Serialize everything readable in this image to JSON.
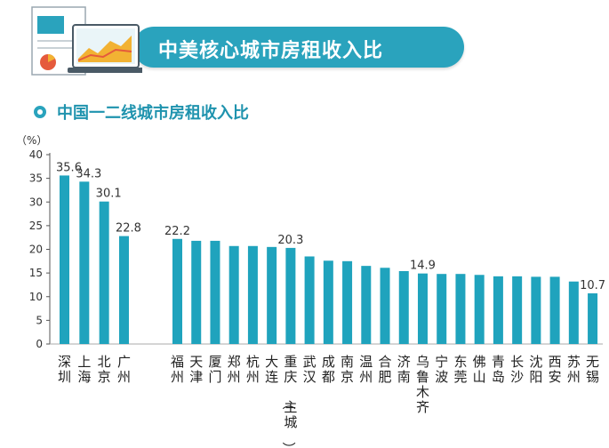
{
  "header": {
    "title": "中美核心城市房租收入比"
  },
  "subtitle": "中国一二线城市房租收入比",
  "chart_data": {
    "type": "bar",
    "ylabel": "（%）",
    "ylim": [
      0,
      40
    ],
    "yticks": [
      0,
      5,
      10,
      15,
      20,
      25,
      30,
      35,
      40
    ],
    "categories": [
      "深圳",
      "上海",
      "北京",
      "广州",
      "福州",
      "天津",
      "厦门",
      "郑州",
      "杭州",
      "大连",
      "重庆（主城）",
      "武汉",
      "成都",
      "南京",
      "温州",
      "合肥",
      "济南",
      "乌鲁木齐",
      "宁波",
      "东莞",
      "佛山",
      "青岛",
      "长沙",
      "沈阳",
      "西安",
      "苏州",
      "无锡"
    ],
    "values": [
      35.6,
      34.3,
      30.1,
      22.8,
      22.2,
      21.8,
      21.8,
      20.7,
      20.7,
      20.5,
      20.3,
      18.5,
      17.6,
      17.5,
      16.5,
      16.1,
      15.4,
      14.9,
      14.8,
      14.8,
      14.6,
      14.3,
      14.3,
      14.2,
      14.2,
      13.2,
      10.7
    ],
    "data_labels": {
      "0": "35.6",
      "1": "34.3",
      "2": "30.1",
      "3": "22.8",
      "4": "22.2",
      "10": "20.3",
      "17": "14.9",
      "26": "10.7"
    }
  }
}
